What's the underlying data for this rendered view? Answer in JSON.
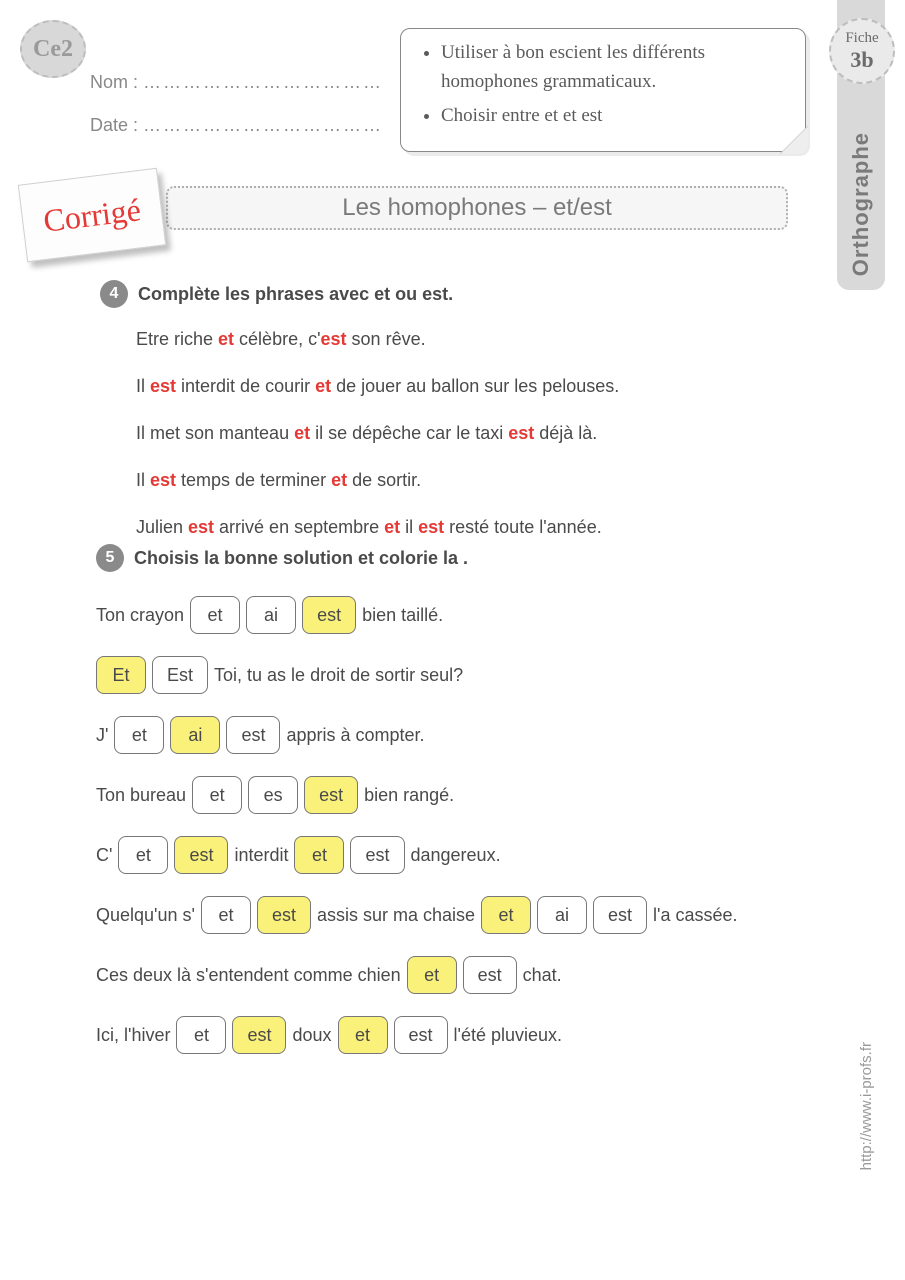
{
  "level_badge": "Ce2",
  "fiche": {
    "label": "Fiche",
    "num": "3b"
  },
  "subject": "Orthographe",
  "namedate": {
    "nom_label": "Nom :",
    "date_label": "Date :",
    "dots": "………………………………"
  },
  "objectives": [
    "Utiliser à bon escient les différents homophones grammaticaux.",
    "Choisir entre et et est"
  ],
  "corrige": "Corrigé",
  "title": "Les homophones – et/est",
  "ex4": {
    "num": "4",
    "instruction": "Complète les phrases avec et ou est.",
    "lines": [
      [
        {
          "t": "Etre riche "
        },
        {
          "a": "et"
        },
        {
          "t": "  célèbre, c'"
        },
        {
          "a": "est"
        },
        {
          "t": " son rêve."
        }
      ],
      [
        {
          "t": " Il "
        },
        {
          "a": "est"
        },
        {
          "t": " interdit de courir "
        },
        {
          "a": "et"
        },
        {
          "t": " de jouer au ballon sur les pelouses."
        }
      ],
      [
        {
          "t": "Il met son manteau "
        },
        {
          "a": "et"
        },
        {
          "t": "  il se dépêche car le taxi "
        },
        {
          "a": "est"
        },
        {
          "t": " déjà là."
        }
      ],
      [
        {
          "t": "Il "
        },
        {
          "a": "est"
        },
        {
          "t": " temps de terminer "
        },
        {
          "a": "et"
        },
        {
          "t": " de sortir."
        }
      ],
      [
        {
          "t": "Julien "
        },
        {
          "a": "est"
        },
        {
          "t": " arrivé en septembre "
        },
        {
          "a": "et"
        },
        {
          "t": " il "
        },
        {
          "a": "est"
        },
        {
          "t": " resté toute l'année."
        }
      ]
    ]
  },
  "ex5": {
    "num": "5",
    "instruction": "Choisis la bonne solution et colorie la .",
    "rows": [
      [
        {
          "t": "Ton crayon"
        },
        {
          "o": "et"
        },
        {
          "o": "ai"
        },
        {
          "o": "est",
          "s": true
        },
        {
          "t": " bien  taillé."
        }
      ],
      [
        {
          "o": "Et",
          "s": true
        },
        {
          "o": "Est"
        },
        {
          "t": " Toi, tu as le droit de sortir seul?"
        }
      ],
      [
        {
          "t": "J' "
        },
        {
          "o": "et"
        },
        {
          "o": "ai",
          "s": true
        },
        {
          "o": "est"
        },
        {
          "t": "appris à compter."
        }
      ],
      [
        {
          "t": "Ton bureau"
        },
        {
          "o": "et"
        },
        {
          "o": "es"
        },
        {
          "o": "est",
          "s": true
        },
        {
          "t": " bien rangé."
        }
      ],
      [
        {
          "t": " C' "
        },
        {
          "o": "et"
        },
        {
          "o": "est",
          "s": true
        },
        {
          "t": " interdit "
        },
        {
          "o": "et",
          "s": true
        },
        {
          "o": "est"
        },
        {
          "t": " dangereux."
        }
      ],
      [
        {
          "t": "Quelqu'un s' "
        },
        {
          "o": "et"
        },
        {
          "o": "est",
          "s": true
        },
        {
          "t": " assis sur ma chaise "
        },
        {
          "o": "et",
          "s": true
        },
        {
          "o": "ai"
        },
        {
          "o": "est"
        },
        {
          "t": " l'a cassée."
        }
      ],
      [
        {
          "t": "Ces deux là s'entendent comme chien "
        },
        {
          "o": "et",
          "s": true
        },
        {
          "o": "est"
        },
        {
          "t": " chat."
        }
      ],
      [
        {
          "t": " Ici, l'hiver "
        },
        {
          "o": "et"
        },
        {
          "o": "est",
          "s": true
        },
        {
          "t": " doux"
        },
        {
          "o": "et",
          "s": true
        },
        {
          "o": "est"
        },
        {
          "t": " l'été pluvieux."
        }
      ]
    ]
  },
  "url": "http://www.i-profs.fr",
  "colors": {
    "answer": "#e53935",
    "highlight": "#faf17a",
    "badge_bg": "#d8d8d8",
    "text": "#4a4a4a"
  }
}
